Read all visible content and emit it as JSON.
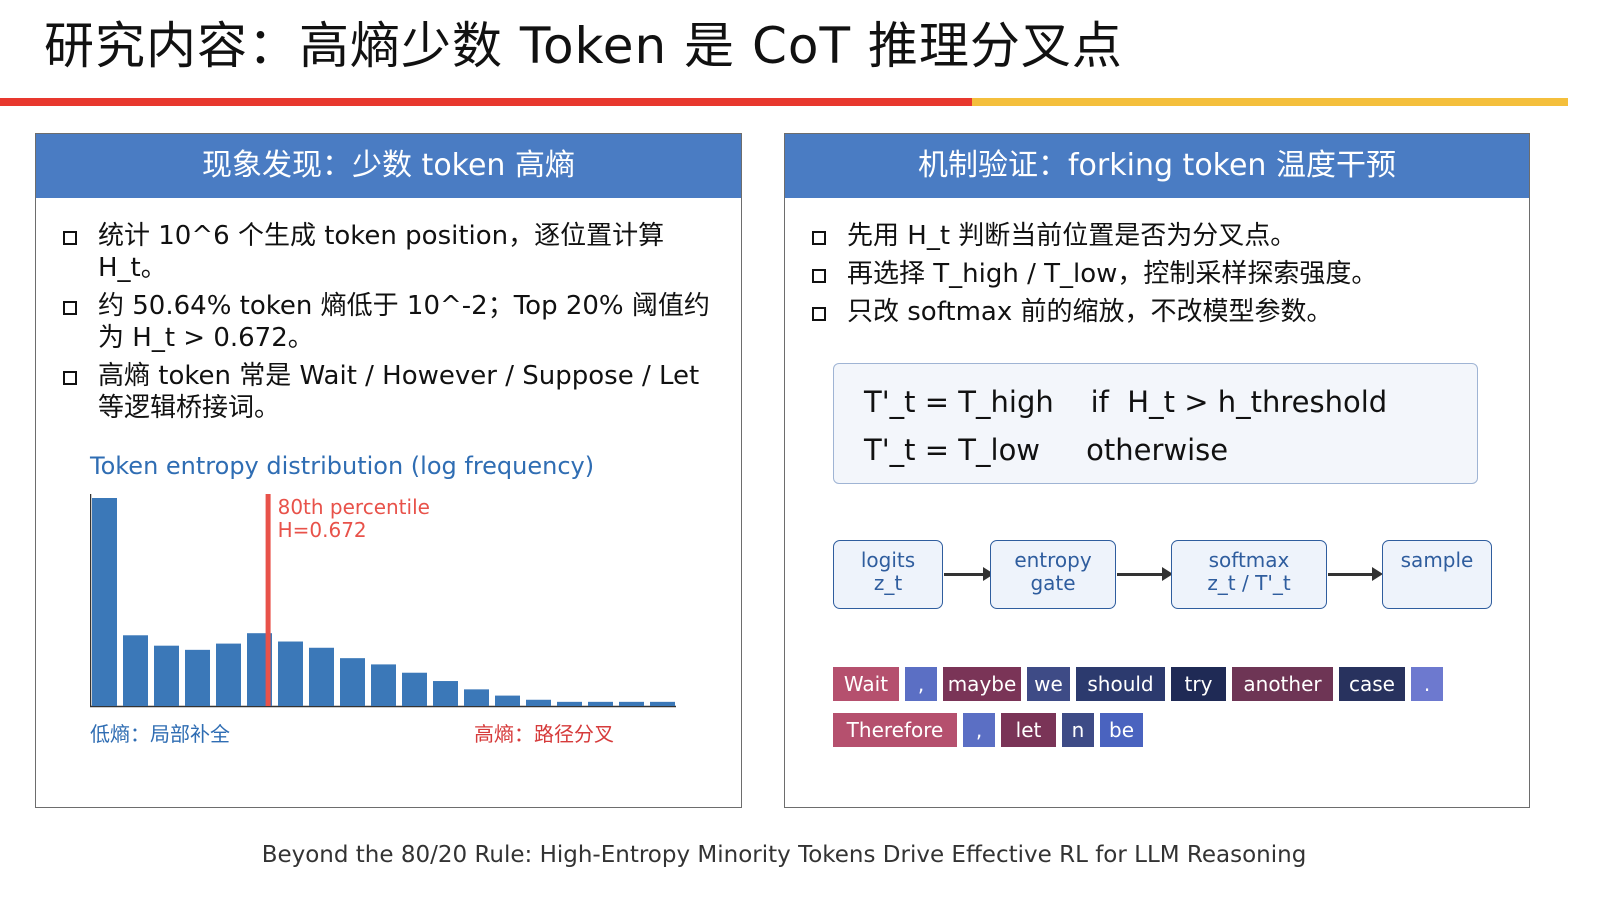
{
  "slide": {
    "title": "研究内容：高熵少数 Token 是 CoT 推理分叉点",
    "footer": "Beyond the 80/20 Rule: High-Entropy Minority Tokens Drive Effective RL for LLM Reasoning",
    "colors": {
      "accent_red": "#e8382e",
      "accent_yellow": "#f4bf3c",
      "panel_header": "#4a7cc3"
    }
  },
  "left_panel": {
    "header": "现象发现：少数 token 高熵",
    "bullets": [
      "统计 10^6 个生成 token position，逐位置计算 H_t。",
      "约 50.64% token 熵低于 10^-2；Top 20% 阈值约为 H_t > 0.672。",
      "高熵 token 常是 Wait / However / Suppose / Let 等逻辑桥接词。"
    ],
    "chart_caption_left": "低熵：局部补全",
    "chart_caption_right": "高熵：路径分叉"
  },
  "chart_data": {
    "type": "bar",
    "title": "Token entropy distribution  (log frequency)",
    "bar_color": "#3b78b8",
    "values": [
      100,
      34,
      29,
      27,
      30,
      35,
      31,
      28,
      23,
      20,
      16,
      12,
      8,
      5,
      3,
      2,
      2,
      2,
      2
    ],
    "ylim": [
      0,
      100
    ],
    "annotation": {
      "label_line1": "80th percentile",
      "label_line2": "H=0.672",
      "position_bar_index": 5.6,
      "color": "#e8524a"
    }
  },
  "right_panel": {
    "header": "机制验证：forking token 温度干预",
    "bullets": [
      "先用 H_t 判断当前位置是否为分叉点。",
      "再选择 T_high / T_low，控制采样探索强度。",
      "只改 softmax 前的缩放，不改模型参数。"
    ],
    "formula": [
      "T'_t = T_high    if  H_t > h_threshold",
      "T'_t = T_low     otherwise"
    ],
    "flow": [
      {
        "line1": "logits",
        "line2": "z_t"
      },
      {
        "line1": "entropy",
        "line2": "gate"
      },
      {
        "line1": "softmax",
        "line2": "z_t / T'_t"
      },
      {
        "line1": "sample",
        "line2": ""
      }
    ],
    "token_rows": [
      [
        {
          "text": "Wait",
          "color": "#b5506e"
        },
        {
          "text": ",",
          "color": "#5b6fc4"
        },
        {
          "text": "maybe",
          "color": "#7a3457"
        },
        {
          "text": "we",
          "color": "#3e4b86"
        },
        {
          "text": "should",
          "color": "#2c3a6e"
        },
        {
          "text": "try",
          "color": "#1f2a55"
        },
        {
          "text": "another",
          "color": "#6e3555"
        },
        {
          "text": "case",
          "color": "#28325e"
        },
        {
          "text": ".",
          "color": "#6d79cf"
        }
      ],
      [
        {
          "text": "Therefore",
          "color": "#b5506e"
        },
        {
          "text": ",",
          "color": "#5b6fc4"
        },
        {
          "text": "let",
          "color": "#7a3457"
        },
        {
          "text": "n",
          "color": "#3e4b86"
        },
        {
          "text": "be",
          "color": "#4a63bf"
        }
      ]
    ]
  }
}
